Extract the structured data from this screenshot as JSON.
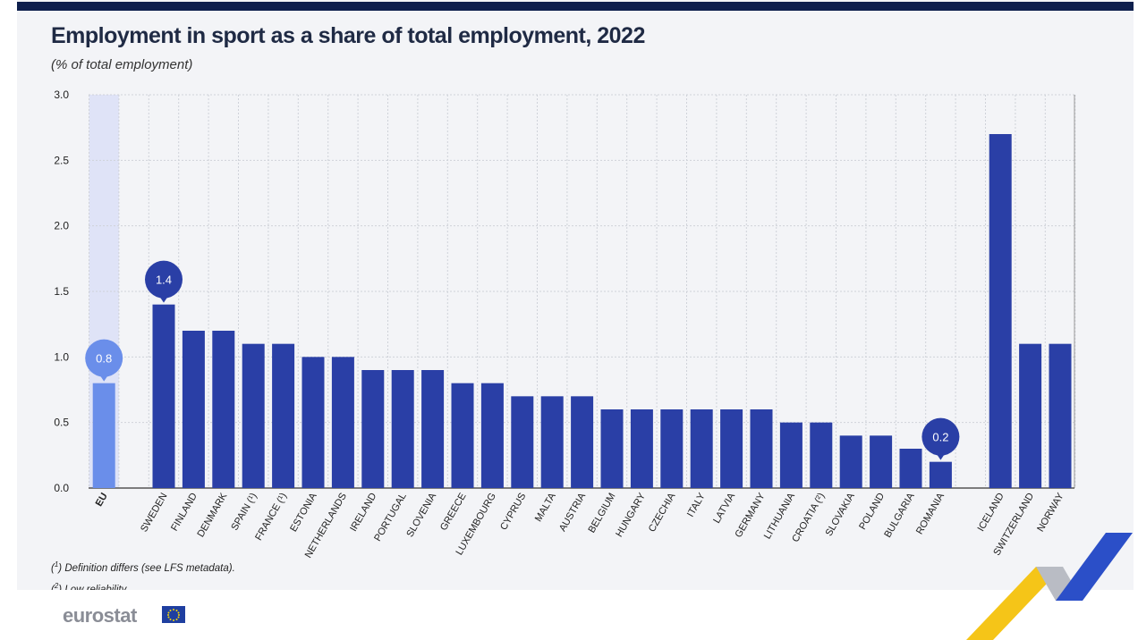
{
  "title": "Employment in sport as a share of total employment, 2022",
  "subtitle": "(% of total employment)",
  "notes": [
    {
      "mark": "1",
      "text": "Definition differs (see LFS metadata)."
    },
    {
      "mark": "2",
      "text": "Low reliability."
    }
  ],
  "logo_text": "eurostat",
  "logo_flag_icon": "eu-flag-icon",
  "colors": {
    "bar": "#2a3fa6",
    "eu_bar": "#6a8eea",
    "eu_band": "#dfe3f7",
    "grid": "#cfd2d9",
    "text": "#222222"
  },
  "chart_data": {
    "type": "bar",
    "title": "Employment in sport as a share of total employment, 2022",
    "subtitle": "(% of total employment)",
    "ylim": [
      0,
      3
    ],
    "yticks": [
      "0.0",
      "0.5",
      "1.0",
      "1.5",
      "2.0",
      "2.5",
      "3.0"
    ],
    "grid": true,
    "groups": [
      {
        "categories": [
          "EU"
        ],
        "values": [
          0.8
        ]
      },
      {
        "categories": [
          "SWEDEN",
          "FINLAND",
          "DENMARK",
          "SPAIN (¹)",
          "FRANCE (¹)",
          "ESTONIA",
          "NETHERLANDS",
          "IRELAND",
          "PORTUGAL",
          "SLOVENIA",
          "GREECE",
          "LUXEMBOURG",
          "CYPRUS",
          "MALTA",
          "AUSTRIA",
          "BELGIUM",
          "HUNGARY",
          "CZECHIA",
          "ITALY",
          "LATVIA",
          "GERMANY",
          "LITHUANIA",
          "CROATIA (²)",
          "SLOVAKIA",
          "POLAND",
          "BULGARIA",
          "ROMANIA"
        ],
        "values": [
          1.4,
          1.2,
          1.2,
          1.1,
          1.1,
          1.0,
          1.0,
          0.9,
          0.9,
          0.9,
          0.8,
          0.8,
          0.7,
          0.7,
          0.7,
          0.6,
          0.6,
          0.6,
          0.6,
          0.6,
          0.6,
          0.5,
          0.5,
          0.4,
          0.4,
          0.3,
          0.2
        ]
      },
      {
        "categories": [
          "ICELAND",
          "SWITZERLAND",
          "NORWAY"
        ],
        "values": [
          2.7,
          1.1,
          1.1
        ]
      }
    ],
    "callouts": [
      {
        "category": "EU",
        "label": "0.8"
      },
      {
        "category": "SWEDEN",
        "label": "1.4"
      },
      {
        "category": "ROMANIA",
        "label": "0.2"
      }
    ]
  }
}
